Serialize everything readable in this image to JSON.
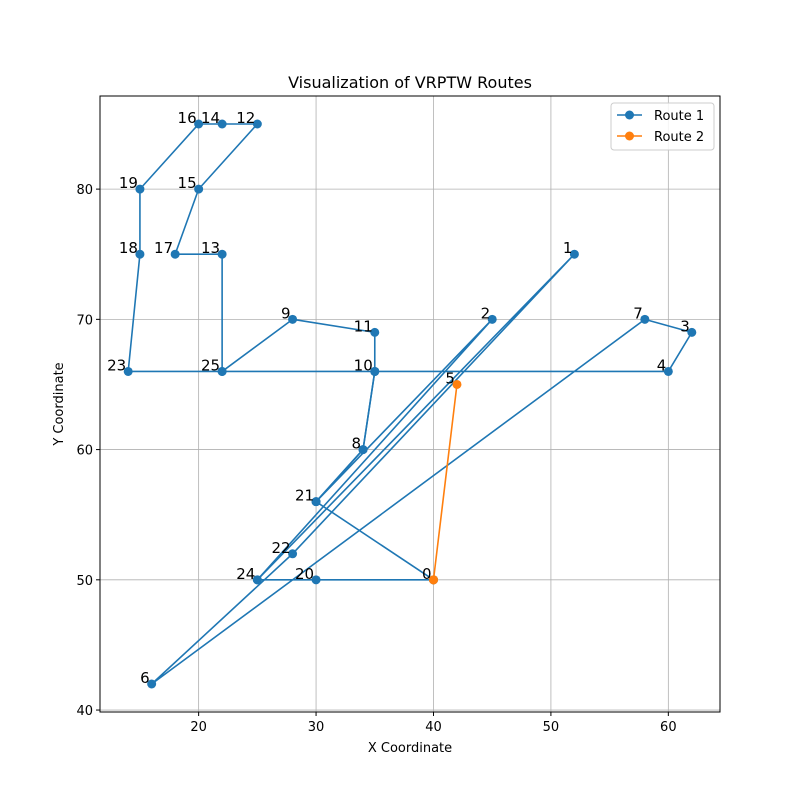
{
  "chart_data": {
    "type": "line",
    "title": "Visualization of VRPTW Routes",
    "xlabel": "X Coordinate",
    "ylabel": "Y Coordinate",
    "xlim": [
      11.6,
      64.4
    ],
    "ylim": [
      39.85,
      87.15
    ],
    "xticks": [
      20,
      30,
      40,
      50,
      60
    ],
    "yticks": [
      40,
      50,
      60,
      70,
      80
    ],
    "grid": true,
    "legend_position": "top-right",
    "nodes": {
      "0": [
        40,
        50
      ],
      "1": [
        52,
        75
      ],
      "2": [
        45,
        70
      ],
      "3": [
        62,
        69
      ],
      "4": [
        60,
        66
      ],
      "5": [
        42,
        65
      ],
      "6": [
        16,
        42
      ],
      "7": [
        58,
        70
      ],
      "8": [
        34,
        60
      ],
      "9": [
        28,
        70
      ],
      "10": [
        35,
        66
      ],
      "11": [
        35,
        69
      ],
      "12": [
        25,
        85
      ],
      "13": [
        22,
        75
      ],
      "14": [
        22,
        85
      ],
      "15": [
        20,
        80
      ],
      "16": [
        20,
        85
      ],
      "17": [
        18,
        75
      ],
      "18": [
        15,
        75
      ],
      "19": [
        15,
        80
      ],
      "20": [
        30,
        50
      ],
      "21": [
        30,
        56
      ],
      "22": [
        28,
        52
      ],
      "23": [
        14,
        66
      ],
      "24": [
        25,
        50
      ],
      "25": [
        22,
        66
      ]
    },
    "series": [
      {
        "name": "Route 1",
        "color": "#1f77b4",
        "route": [
          0,
          20,
          24,
          1,
          22,
          6,
          7,
          3,
          4,
          10,
          8,
          21,
          0
        ]
      },
      {
        "name": "Route 2",
        "color": "#ff7f0e",
        "route": [
          0,
          5,
          0
        ]
      }
    ],
    "extra_route1_path": [
      24,
      2,
      21,
      8,
      10,
      11,
      9,
      25,
      13,
      17,
      15,
      12,
      14,
      16,
      19,
      18,
      23,
      25,
      10
    ],
    "point_labels": [
      "0",
      "1",
      "2",
      "3",
      "4",
      "5",
      "6",
      "7",
      "8",
      "9",
      "10",
      "11",
      "12",
      "13",
      "14",
      "15",
      "16",
      "17",
      "18",
      "19",
      "20",
      "21",
      "22",
      "23",
      "24",
      "25"
    ]
  }
}
